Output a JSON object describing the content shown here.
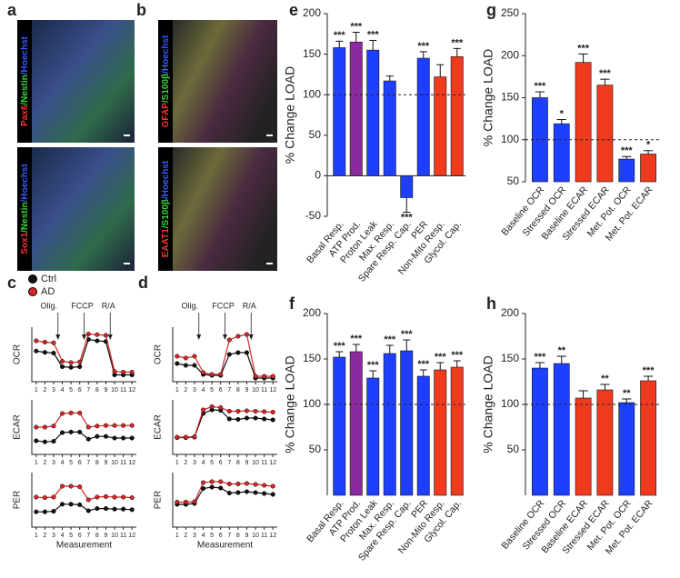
{
  "image_panels": [
    {
      "panel": "a",
      "labels": [
        [
          "Pax6",
          "/Nestin",
          "/Hoechst"
        ],
        [
          "Sox1",
          "/Nestin",
          "/Hoechst"
        ]
      ]
    },
    {
      "panel": "b",
      "labels": [
        [
          "GFAP",
          "/S100β",
          "/Hoechst"
        ],
        [
          "EAAT1",
          "/S100β",
          "/Hoechst"
        ]
      ]
    }
  ],
  "chart_data": [
    {
      "type": "line",
      "legend": {
        "names": [
          "Ctrl",
          "AD"
        ],
        "colors": [
          "#111111",
          "#d62728"
        ]
      },
      "x": [
        1,
        2,
        3,
        4,
        5,
        6,
        7,
        8,
        9,
        10,
        11,
        12
      ],
      "xlim": [
        0.5,
        12.5
      ],
      "xticks": [
        1,
        2,
        3,
        4,
        5,
        6,
        7,
        8,
        9,
        10,
        11,
        12
      ],
      "xlabel": "Measurement",
      "panels": [
        {
          "panel": "c",
          "annotations": [
            "Olig.",
            "FCCP",
            "R/A"
          ],
          "subplots": [
            {
              "ylabel": "OCR",
              "ylim": [
                0,
                8
              ],
              "series": [
                {
                  "values": [
                    4.5,
                    4.3,
                    4.2,
                    2.2,
                    2.1,
                    2.2,
                    6.2,
                    6.0,
                    5.9,
                    1.0,
                    1.0,
                    1.0
                  ]
                },
                {
                  "values": [
                    6.0,
                    5.8,
                    5.7,
                    3.0,
                    2.8,
                    2.9,
                    7.0,
                    6.9,
                    6.8,
                    1.5,
                    1.4,
                    1.4
                  ]
                }
              ]
            },
            {
              "ylabel": "ECAR",
              "ylim": [
                0,
                10
              ],
              "series": [
                {
                  "values": [
                    2.5,
                    2.3,
                    2.4,
                    4.0,
                    4.1,
                    4.1,
                    2.8,
                    3.3,
                    3.3,
                    3.0,
                    3.0,
                    3.0
                  ]
                },
                {
                  "values": [
                    5.0,
                    5.0,
                    5.2,
                    7.5,
                    7.6,
                    7.6,
                    5.0,
                    5.2,
                    5.3,
                    5.3,
                    5.3,
                    5.3
                  ]
                }
              ]
            },
            {
              "ylabel": "PER",
              "ylim": [
                0,
                10
              ],
              "series": [
                {
                  "values": [
                    2.8,
                    2.8,
                    2.9,
                    4.2,
                    4.2,
                    4.1,
                    3.0,
                    3.4,
                    3.4,
                    3.3,
                    3.3,
                    3.2
                  ]
                },
                {
                  "values": [
                    5.5,
                    5.4,
                    5.5,
                    7.5,
                    7.5,
                    7.4,
                    5.0,
                    5.5,
                    5.6,
                    5.5,
                    5.5,
                    5.4
                  ]
                }
              ]
            }
          ]
        },
        {
          "panel": "d",
          "annotations": [
            "Olig.",
            "FCCP",
            "R/A"
          ],
          "subplots": [
            {
              "ylabel": "OCR",
              "ylim": [
                0,
                3
              ],
              "series": [
                {
                  "values": [
                    1.0,
                    0.9,
                    0.9,
                    0.4,
                    0.35,
                    0.35,
                    1.5,
                    1.6,
                    1.6,
                    0.2,
                    0.2,
                    0.2
                  ]
                },
                {
                  "values": [
                    1.4,
                    1.3,
                    1.4,
                    0.5,
                    0.4,
                    0.4,
                    2.3,
                    2.5,
                    2.6,
                    0.3,
                    0.3,
                    0.3
                  ]
                }
              ]
            },
            {
              "ylabel": "ECAR",
              "ylim": [
                0,
                12
              ],
              "series": [
                {
                  "values": [
                    3.7,
                    3.7,
                    3.8,
                    9.0,
                    9.8,
                    9.7,
                    7.8,
                    7.7,
                    8.0,
                    8.0,
                    7.8,
                    7.6
                  ]
                },
                {
                  "values": [
                    3.8,
                    3.8,
                    3.9,
                    9.8,
                    10.5,
                    10.3,
                    9.5,
                    9.5,
                    9.6,
                    9.5,
                    9.4,
                    9.3
                  ]
                }
              ]
            },
            {
              "ylabel": "PER",
              "ylim": [
                0,
                12
              ],
              "series": [
                {
                  "values": [
                    5.0,
                    5.0,
                    5.2,
                    8.5,
                    8.8,
                    8.6,
                    7.5,
                    7.6,
                    7.8,
                    7.6,
                    7.4,
                    7.2
                  ]
                },
                {
                  "values": [
                    5.5,
                    5.5,
                    5.6,
                    9.8,
                    10.0,
                    10.0,
                    9.5,
                    9.5,
                    9.6,
                    9.4,
                    9.2,
                    9.0
                  ]
                }
              ]
            }
          ]
        }
      ]
    },
    {
      "type": "bar",
      "panel": "e",
      "ylabel": "% Change LOAD",
      "categories": [
        "Basal Resp.",
        "ATP Prod.",
        "Proton Leak",
        "Max. Resp.",
        "Spare Resp. Cap.",
        "PER",
        "Non-Mito Resp.",
        "Glycol. Cap."
      ],
      "values": [
        158,
        165,
        155,
        117,
        -27,
        145,
        122,
        147
      ],
      "errors": [
        8,
        12,
        12,
        6,
        18,
        8,
        15,
        10
      ],
      "significance": [
        "***",
        "***",
        "***",
        null,
        "***",
        "***",
        null,
        "***"
      ],
      "colors": [
        "#1f3fff",
        "#8b2a9e",
        "#1f3fff",
        "#1f3fff",
        "#1f3fff",
        "#1f3fff",
        "#f03a1e",
        "#f03a1e"
      ],
      "ylim": [
        -50,
        200
      ],
      "yticks": [
        -50,
        0,
        50,
        100,
        150,
        200
      ],
      "refline": 100
    },
    {
      "type": "bar",
      "panel": "g",
      "ylabel": "% Change LOAD",
      "categories": [
        "Baseline OCR",
        "Stressed OCR",
        "Baseline ECAR",
        "Stressed ECAR",
        "Met. Pot. OCR",
        "Met. Pot. ECAR"
      ],
      "values": [
        150,
        119,
        192,
        165,
        77,
        83
      ],
      "errors": [
        7,
        5,
        10,
        7,
        3,
        4
      ],
      "significance": [
        "***",
        "*",
        "***",
        "***",
        "***",
        "*"
      ],
      "colors": [
        "#1f3fff",
        "#1f3fff",
        "#f03a1e",
        "#f03a1e",
        "#1f3fff",
        "#f03a1e"
      ],
      "ylim": [
        50,
        250
      ],
      "yticks": [
        50,
        100,
        150,
        200,
        250
      ],
      "refline": 100
    },
    {
      "type": "bar",
      "panel": "f",
      "ylabel": "% Change LOAD",
      "categories": [
        "Basal Resp.",
        "ATP Prod.",
        "Proton Leak",
        "Max. Resp.",
        "Spare Resp. Cap.",
        "PER",
        "Non-Mito Resp.",
        "Glycol. Cap."
      ],
      "values": [
        152,
        158,
        129,
        156,
        159,
        131,
        138,
        141
      ],
      "errors": [
        6,
        8,
        8,
        9,
        12,
        7,
        8,
        7
      ],
      "significance": [
        "***",
        "***",
        "***",
        "***",
        "***",
        "***",
        "***",
        "***"
      ],
      "colors": [
        "#1f3fff",
        "#8b2a9e",
        "#1f3fff",
        "#1f3fff",
        "#1f3fff",
        "#1f3fff",
        "#f03a1e",
        "#f03a1e"
      ],
      "ylim": [
        0,
        200
      ],
      "yticks": [
        50,
        100,
        150,
        200
      ],
      "refline": 100
    },
    {
      "type": "bar",
      "panel": "h",
      "ylabel": "% Change LOAD",
      "categories": [
        "Baseline OCR",
        "Stressed OCR",
        "Baseline ECAR",
        "Stressed ECAR",
        "Met. Pot. OCR",
        "Met. Pot. ECAR"
      ],
      "values": [
        140,
        145,
        107,
        116,
        102,
        126
      ],
      "errors": [
        6,
        8,
        8,
        6,
        4,
        5
      ],
      "significance": [
        "***",
        "**",
        null,
        "**",
        "**",
        "***"
      ],
      "colors": [
        "#1f3fff",
        "#1f3fff",
        "#f03a1e",
        "#f03a1e",
        "#1f3fff",
        "#f03a1e"
      ],
      "ylim": [
        0,
        200
      ],
      "yticks": [
        50,
        100,
        150,
        200
      ],
      "refline": 100
    }
  ]
}
